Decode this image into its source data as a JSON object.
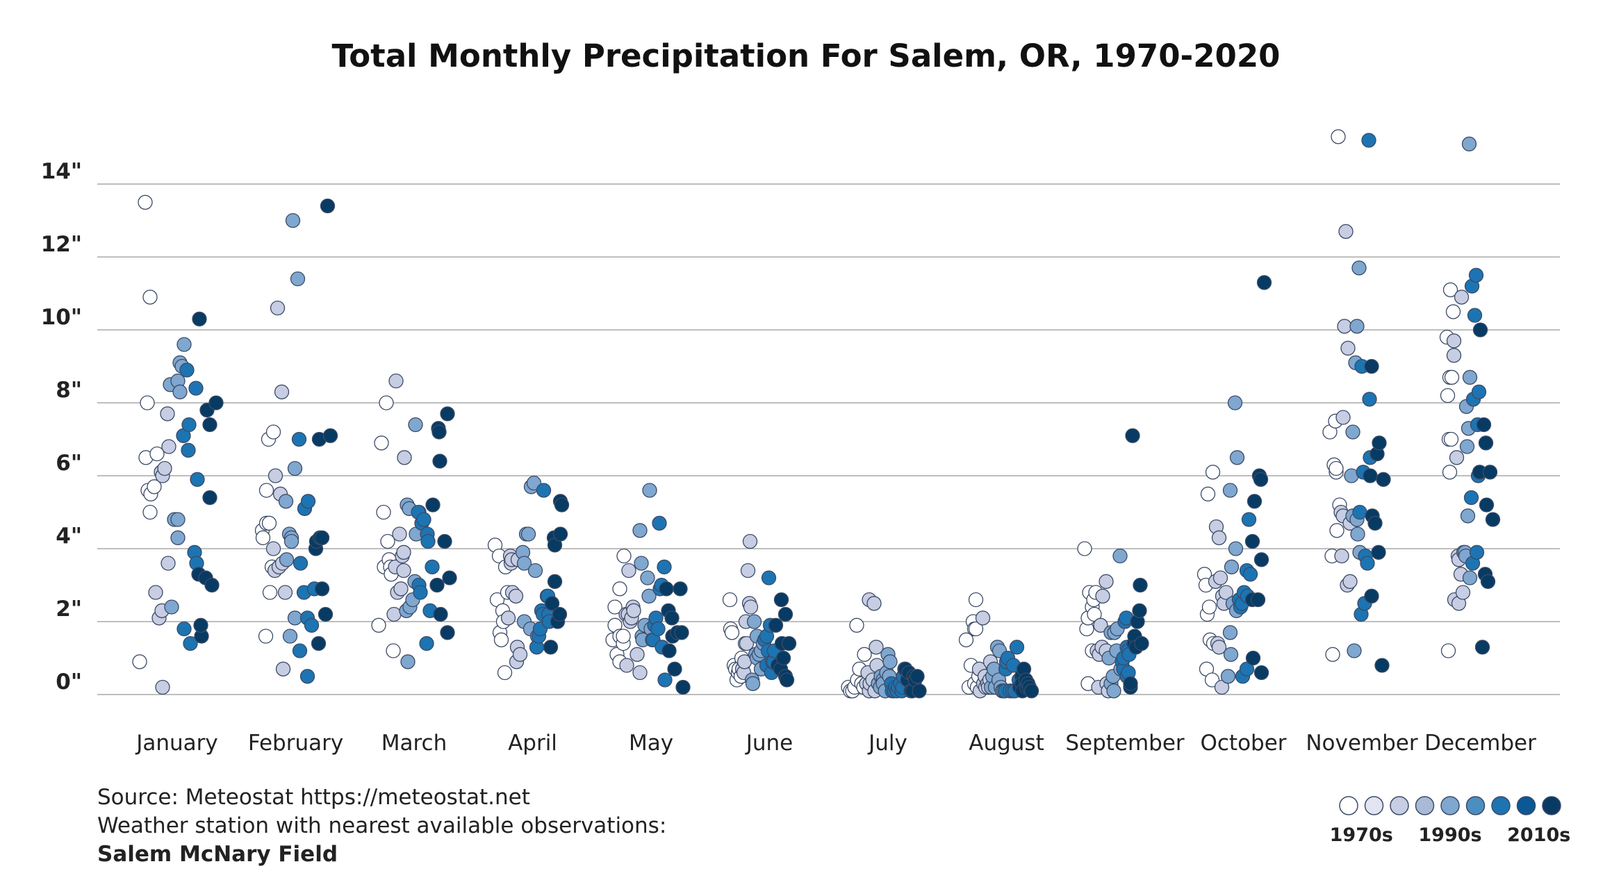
{
  "chart_data": {
    "type": "scatter",
    "title": "Total Monthly Precipitation For Salem, OR, 1970-2020",
    "categories": [
      "January",
      "February",
      "March",
      "April",
      "May",
      "June",
      "July",
      "August",
      "September",
      "October",
      "November",
      "December"
    ],
    "yticks": [
      {
        "value": 0,
        "label": "0\""
      },
      {
        "value": 2,
        "label": "2\""
      },
      {
        "value": 4,
        "label": "4\""
      },
      {
        "value": 6,
        "label": "6\""
      },
      {
        "value": 8,
        "label": "8\""
      },
      {
        "value": 10,
        "label": "10\""
      },
      {
        "value": 12,
        "label": "12\""
      },
      {
        "value": 14,
        "label": "14\""
      }
    ],
    "ylim": [
      0,
      15.2
    ],
    "grid": true,
    "legend": {
      "position": "bottom-right",
      "labels": [
        "1970s",
        "1990s",
        "2010s"
      ],
      "swatches": 9,
      "colors": [
        "#ffffff",
        "#e2e5f1",
        "#c7cde2",
        "#a8bad6",
        "#7fa7cf",
        "#4b8fc2",
        "#1d74b2",
        "#0b5895",
        "#073b63"
      ]
    },
    "decade_colors": [
      "#ffffff",
      "#c7cde2",
      "#7fa7cf",
      "#1d74b2",
      "#073b63"
    ],
    "values": [
      [
        13.5,
        8.0,
        6.5,
        5.6,
        5.0,
        10.9,
        5.5,
        0.9,
        5.7,
        6.6,
        2.8,
        2.1,
        6.1,
        6.0,
        2.3,
        0.2,
        6.2,
        7.7,
        6.8,
        3.6,
        8.5,
        2.4,
        4.8,
        4.8,
        8.6,
        4.3,
        8.3,
        9.1,
        9.0,
        9.6,
        7.1,
        1.8,
        8.9,
        7.4,
        6.7,
        1.4,
        3.9,
        8.4,
        5.9,
        3.6,
        3.3,
        10.3,
        1.6,
        1.9,
        3.2,
        7.8,
        5.4,
        7.4,
        3.0,
        8.0
      ],
      [
        4.5,
        4.3,
        1.6,
        4.7,
        5.6,
        7.0,
        4.7,
        2.8,
        3.5,
        7.2,
        4.0,
        3.4,
        6.0,
        10.6,
        5.5,
        3.5,
        8.3,
        0.7,
        3.6,
        2.8,
        5.3,
        3.7,
        4.4,
        1.6,
        4.3,
        4.2,
        13.0,
        2.1,
        6.2,
        11.4,
        7.0,
        1.2,
        3.6,
        2.8,
        5.1,
        2.1,
        0.5,
        5.3,
        1.9,
        2.9,
        4.0,
        4.2,
        1.4,
        4.3,
        7.0,
        2.9,
        4.3,
        2.2,
        13.4,
        7.1
      ],
      [
        1.9,
        6.9,
        5.0,
        3.5,
        8.0,
        4.2,
        3.7,
        3.5,
        3.3,
        1.2,
        2.2,
        3.5,
        8.6,
        2.8,
        4.4,
        3.8,
        2.9,
        3.9,
        3.4,
        6.5,
        2.3,
        5.2,
        0.9,
        5.1,
        2.4,
        2.6,
        3.1,
        7.4,
        4.4,
        5.0,
        5.0,
        3.0,
        2.8,
        4.7,
        4.8,
        1.4,
        4.4,
        4.2,
        2.3,
        3.5,
        5.2,
        3.0,
        7.3,
        7.2,
        2.2,
        6.4,
        4.2,
        7.7,
        1.7,
        3.2
      ],
      [
        4.1,
        2.6,
        3.8,
        1.7,
        1.5,
        2.3,
        0.6,
        2.0,
        3.5,
        2.8,
        2.1,
        3.8,
        3.6,
        3.7,
        2.8,
        2.7,
        0.9,
        1.3,
        3.7,
        1.1,
        3.9,
        3.6,
        2.0,
        4.4,
        4.4,
        5.7,
        1.8,
        5.8,
        3.4,
        1.6,
        1.3,
        1.6,
        1.8,
        2.3,
        2.2,
        5.6,
        2.7,
        2.7,
        2.2,
        2.0,
        1.3,
        2.5,
        4.3,
        4.1,
        3.1,
        2.0,
        2.2,
        4.4,
        5.3,
        5.2
      ],
      [
        1.5,
        1.9,
        2.4,
        1.1,
        0.9,
        1.6,
        2.9,
        1.4,
        1.6,
        3.8,
        2.2,
        0.8,
        2.2,
        3.4,
        2.0,
        2.1,
        2.4,
        2.3,
        1.1,
        0.6,
        4.5,
        3.6,
        1.6,
        1.5,
        1.9,
        3.2,
        2.7,
        5.6,
        1.8,
        1.5,
        1.5,
        1.9,
        2.1,
        1.8,
        4.7,
        2.9,
        3.0,
        1.3,
        3.5,
        0.4,
        2.9,
        2.3,
        1.2,
        2.1,
        1.6,
        0.7,
        1.7,
        2.9,
        1.7,
        0.2
      ],
      [
        2.6,
        1.8,
        1.7,
        0.8,
        0.7,
        0.4,
        0.6,
        0.7,
        0.5,
        1.0,
        0.7,
        0.6,
        0.9,
        1.4,
        2.0,
        1.4,
        3.4,
        2.5,
        4.2,
        2.4,
        0.4,
        0.3,
        2.0,
        1.1,
        1.0,
        1.6,
        1.1,
        1.2,
        0.7,
        1.4,
        1.5,
        1.6,
        0.8,
        1.2,
        3.2,
        1.9,
        0.6,
        0.9,
        0.9,
        1.2,
        1.9,
        0.8,
        0.7,
        2.6,
        1.4,
        1.0,
        0.5,
        2.2,
        0.4,
        1.4
      ],
      [
        0.2,
        0.1,
        0.1,
        0.2,
        1.9,
        0.4,
        0.7,
        0.3,
        1.1,
        0.2,
        0.3,
        0.6,
        2.6,
        0.1,
        0.3,
        0.4,
        2.5,
        0.1,
        1.3,
        0.8,
        0.3,
        0.2,
        0.5,
        0.4,
        0.3,
        0.1,
        0.6,
        1.1,
        0.5,
        0.9,
        0.3,
        0.1,
        0.1,
        0.2,
        0.1,
        0.2,
        0.3,
        0.1,
        0.2,
        0.5,
        0.7,
        0.7,
        0.4,
        0.6,
        0.1,
        0.1,
        0.5,
        0.4,
        0.5,
        0.1
      ],
      [
        1.5,
        0.2,
        0.8,
        2.0,
        1.8,
        0.3,
        1.8,
        2.6,
        0.2,
        0.5,
        0.7,
        0.1,
        2.1,
        0.3,
        0.5,
        0.2,
        0.3,
        0.2,
        0.4,
        0.9,
        0.2,
        0.5,
        0.7,
        0.2,
        1.3,
        0.4,
        1.2,
        0.2,
        0.1,
        0.1,
        0.1,
        0.7,
        0.9,
        1.0,
        0.1,
        0.1,
        0.8,
        0.1,
        1.3,
        0.4,
        0.2,
        0.5,
        0.3,
        0.1,
        0.7,
        0.4,
        0.2,
        0.3,
        0.2,
        0.1
      ],
      [
        4.0,
        1.8,
        2.1,
        0.3,
        2.8,
        1.2,
        2.4,
        2.6,
        2.2,
        2.8,
        1.2,
        0.2,
        1.1,
        1.9,
        1.3,
        2.7,
        3.1,
        1.2,
        0.3,
        0.1,
        1.0,
        1.7,
        0.3,
        0.5,
        1.7,
        0.1,
        1.2,
        1.8,
        3.8,
        0.7,
        0.9,
        0.7,
        1.0,
        2.0,
        2.1,
        0.5,
        1.3,
        0.6,
        1.2,
        1.1,
        0.2,
        0.3,
        7.1,
        1.4,
        1.6,
        1.3,
        2.0,
        2.3,
        3.0,
        1.4
      ],
      [
        3.3,
        3.0,
        0.7,
        2.2,
        5.5,
        2.4,
        1.5,
        0.4,
        6.1,
        1.4,
        3.1,
        4.6,
        1.4,
        4.3,
        1.3,
        3.2,
        0.2,
        2.7,
        2.5,
        2.8,
        0.5,
        5.6,
        1.7,
        1.1,
        3.5,
        2.5,
        8.0,
        4.0,
        2.3,
        6.5,
        2.6,
        2.4,
        2.5,
        0.5,
        2.8,
        3.4,
        2.7,
        0.7,
        4.8,
        3.3,
        2.6,
        4.2,
        1.0,
        5.3,
        2.6,
        6.0,
        5.9,
        3.7,
        0.6,
        11.3
      ],
      [
        7.2,
        3.8,
        1.1,
        6.3,
        7.5,
        6.1,
        6.2,
        4.5,
        15.3,
        5.2,
        5.0,
        3.8,
        7.6,
        4.9,
        12.7,
        10.1,
        3.0,
        9.5,
        4.7,
        3.1,
        6.0,
        4.9,
        7.2,
        1.2,
        9.1,
        4.8,
        10.1,
        4.4,
        11.7,
        3.9,
        5.0,
        2.2,
        9.0,
        6.1,
        2.5,
        3.8,
        3.6,
        15.2,
        8.1,
        6.5,
        6.0,
        9.0,
        2.7,
        4.9,
        4.7,
        6.6,
        3.9,
        6.9,
        0.8,
        5.9
      ],
      [
        9.8,
        8.2,
        1.2,
        7.0,
        6.1,
        8.7,
        11.1,
        7.0,
        8.7,
        10.5,
        9.7,
        9.3,
        2.6,
        6.5,
        3.8,
        2.5,
        3.7,
        3.3,
        10.9,
        2.8,
        3.9,
        3.9,
        3.8,
        7.9,
        6.8,
        4.9,
        7.3,
        15.1,
        3.2,
        8.7,
        5.4,
        11.2,
        3.6,
        8.1,
        10.4,
        11.5,
        3.9,
        7.4,
        6.0,
        8.3,
        6.1,
        10.0,
        1.3,
        7.4,
        3.3,
        6.9,
        5.2,
        3.1,
        6.1,
        4.8
      ]
    ],
    "jitter": [
      [
        -46,
        -43,
        -45,
        -42,
        -39,
        -39,
        -38,
        -54,
        -33,
        -29,
        -31,
        -26,
        -23,
        -21,
        -22,
        -21,
        -18,
        -14,
        -12,
        -13,
        -10,
        -8,
        -4,
        1,
        1,
        1,
        4,
        4,
        7,
        10,
        9,
        10,
        14,
        17,
        16,
        19,
        25,
        27,
        29,
        28,
        31,
        32,
        35,
        34,
        41,
        43,
        47,
        47,
        50,
        56
      ],
      [
        -48,
        -47,
        -43,
        -42,
        -42,
        -39,
        -38,
        -37,
        -34,
        -32,
        -32,
        -30,
        -29,
        -26,
        -22,
        -24,
        -20,
        -18,
        -19,
        -15,
        -14,
        -13,
        -9,
        -8,
        -6,
        -6,
        -4,
        -1,
        -1,
        3,
        5,
        6,
        7,
        12,
        13,
        17,
        17,
        18,
        23,
        27,
        29,
        30,
        33,
        35,
        34,
        38,
        38,
        43,
        46,
        50
      ],
      [
        -51,
        -47,
        -44,
        -43,
        -40,
        -38,
        -36,
        -34,
        -33,
        -30,
        -29,
        -27,
        -26,
        -24,
        -21,
        -17,
        -19,
        -15,
        -15,
        -14,
        -11,
        -10,
        -9,
        -7,
        -6,
        -2,
        1,
        2,
        3,
        7,
        6,
        7,
        9,
        11,
        14,
        18,
        19,
        20,
        23,
        26,
        27,
        33,
        35,
        36,
        38,
        37,
        44,
        48,
        48,
        51
      ],
      [
        -54,
        -51,
        -48,
        -47,
        -45,
        -43,
        -40,
        -42,
        -39,
        -36,
        -35,
        -32,
        -31,
        -30,
        -29,
        -24,
        -23,
        -22,
        -21,
        -18,
        -14,
        -12,
        -12,
        -9,
        -6,
        -2,
        -3,
        2,
        4,
        7,
        6,
        9,
        11,
        13,
        15,
        16,
        21,
        22,
        23,
        24,
        26,
        28,
        31,
        32,
        32,
        36,
        39,
        40,
        40,
        42
      ],
      [
        -55,
        -52,
        -52,
        -49,
        -45,
        -45,
        -45,
        -40,
        -40,
        -39,
        -36,
        -35,
        -33,
        -32,
        -30,
        -28,
        -26,
        -25,
        -20,
        -16,
        -16,
        -14,
        -13,
        -12,
        -9,
        -5,
        -3,
        -2,
        0,
        2,
        3,
        5,
        7,
        10,
        12,
        13,
        15,
        16,
        19,
        20,
        22,
        25,
        26,
        30,
        31,
        34,
        38,
        42,
        44,
        46
      ],
      [
        -57,
        -56,
        -54,
        -51,
        -49,
        -47,
        -45,
        -44,
        -41,
        -40,
        -39,
        -37,
        -36,
        -35,
        -34,
        -33,
        -31,
        -29,
        -28,
        -27,
        -25,
        -24,
        -22,
        -20,
        -18,
        -18,
        -15,
        -12,
        -12,
        -9,
        -7,
        -4,
        -4,
        -2,
        -1,
        1,
        3,
        4,
        6,
        7,
        9,
        12,
        16,
        17,
        18,
        20,
        23,
        23,
        25,
        28
      ],
      [
        -57,
        -54,
        -51,
        -48,
        -45,
        -44,
        -41,
        -38,
        -34,
        -35,
        -31,
        -29,
        -27,
        -27,
        -26,
        -22,
        -20,
        -19,
        -17,
        -16,
        -14,
        -11,
        -10,
        -7,
        -7,
        -4,
        -2,
        0,
        2,
        3,
        5,
        6,
        9,
        11,
        13,
        15,
        18,
        20,
        21,
        22,
        24,
        25,
        28,
        30,
        33,
        35,
        37,
        39,
        42,
        45
      ],
      [
        -58,
        -54,
        -51,
        -48,
        -46,
        -46,
        -44,
        -44,
        -42,
        -40,
        -39,
        -38,
        -34,
        -33,
        -31,
        -30,
        -27,
        -26,
        -24,
        -23,
        -22,
        -20,
        -18,
        -16,
        -13,
        -11,
        -10,
        -8,
        -6,
        -4,
        -2,
        -1,
        0,
        2,
        5,
        9,
        10,
        12,
        15,
        18,
        19,
        22,
        22,
        23,
        25,
        28,
        29,
        31,
        33,
        36
      ],
      [
        -58,
        -55,
        -53,
        -53,
        -51,
        -47,
        -47,
        -45,
        -44,
        -42,
        -40,
        -38,
        -37,
        -35,
        -33,
        -32,
        -27,
        -27,
        -26,
        -24,
        -23,
        -20,
        -20,
        -17,
        -15,
        -16,
        -12,
        -11,
        -7,
        -6,
        -4,
        -2,
        -2,
        0,
        2,
        3,
        3,
        5,
        5,
        6,
        8,
        8,
        11,
        13,
        14,
        16,
        18,
        21,
        22,
        24
      ],
      [
        -56,
        -54,
        -53,
        -52,
        -51,
        -49,
        -48,
        -45,
        -44,
        -43,
        -40,
        -39,
        -37,
        -35,
        -35,
        -33,
        -31,
        -30,
        -28,
        -25,
        -22,
        -19,
        -19,
        -18,
        -17,
        -15,
        -12,
        -11,
        -10,
        -9,
        -6,
        -4,
        -2,
        -1,
        1,
        5,
        6,
        5,
        8,
        10,
        13,
        13,
        14,
        16,
        21,
        23,
        25,
        26,
        26,
        30
      ],
      [
        -46,
        -43,
        -42,
        -40,
        -38,
        -37,
        -37,
        -36,
        -34,
        -32,
        -30,
        -29,
        -27,
        -27,
        -23,
        -25,
        -21,
        -20,
        -17,
        -17,
        -15,
        -13,
        -13,
        -11,
        -9,
        -7,
        -7,
        -6,
        -4,
        -3,
        -3,
        -1,
        0,
        2,
        4,
        5,
        8,
        10,
        11,
        12,
        12,
        14,
        14,
        15,
        19,
        22,
        24,
        25,
        29,
        31
      ],
      [
        -48,
        -47,
        -46,
        -45,
        -44,
        -44,
        -43,
        -42,
        -41,
        -39,
        -38,
        -38,
        -37,
        -34,
        -32,
        -31,
        -31,
        -28,
        -27,
        -25,
        -24,
        -22,
        -21,
        -20,
        -19,
        -18,
        -17,
        -16,
        -15,
        -15,
        -13,
        -12,
        -11,
        -10,
        -8,
        -6,
        -5,
        -4,
        -3,
        -2,
        -1,
        0,
        3,
        5,
        7,
        8,
        9,
        11,
        14,
        18
      ]
    ]
  },
  "source": {
    "line1": "Source: Meteostat https://meteostat.net",
    "line2": "Weather station with nearest available observations:",
    "line3": "Salem McNary Field"
  }
}
